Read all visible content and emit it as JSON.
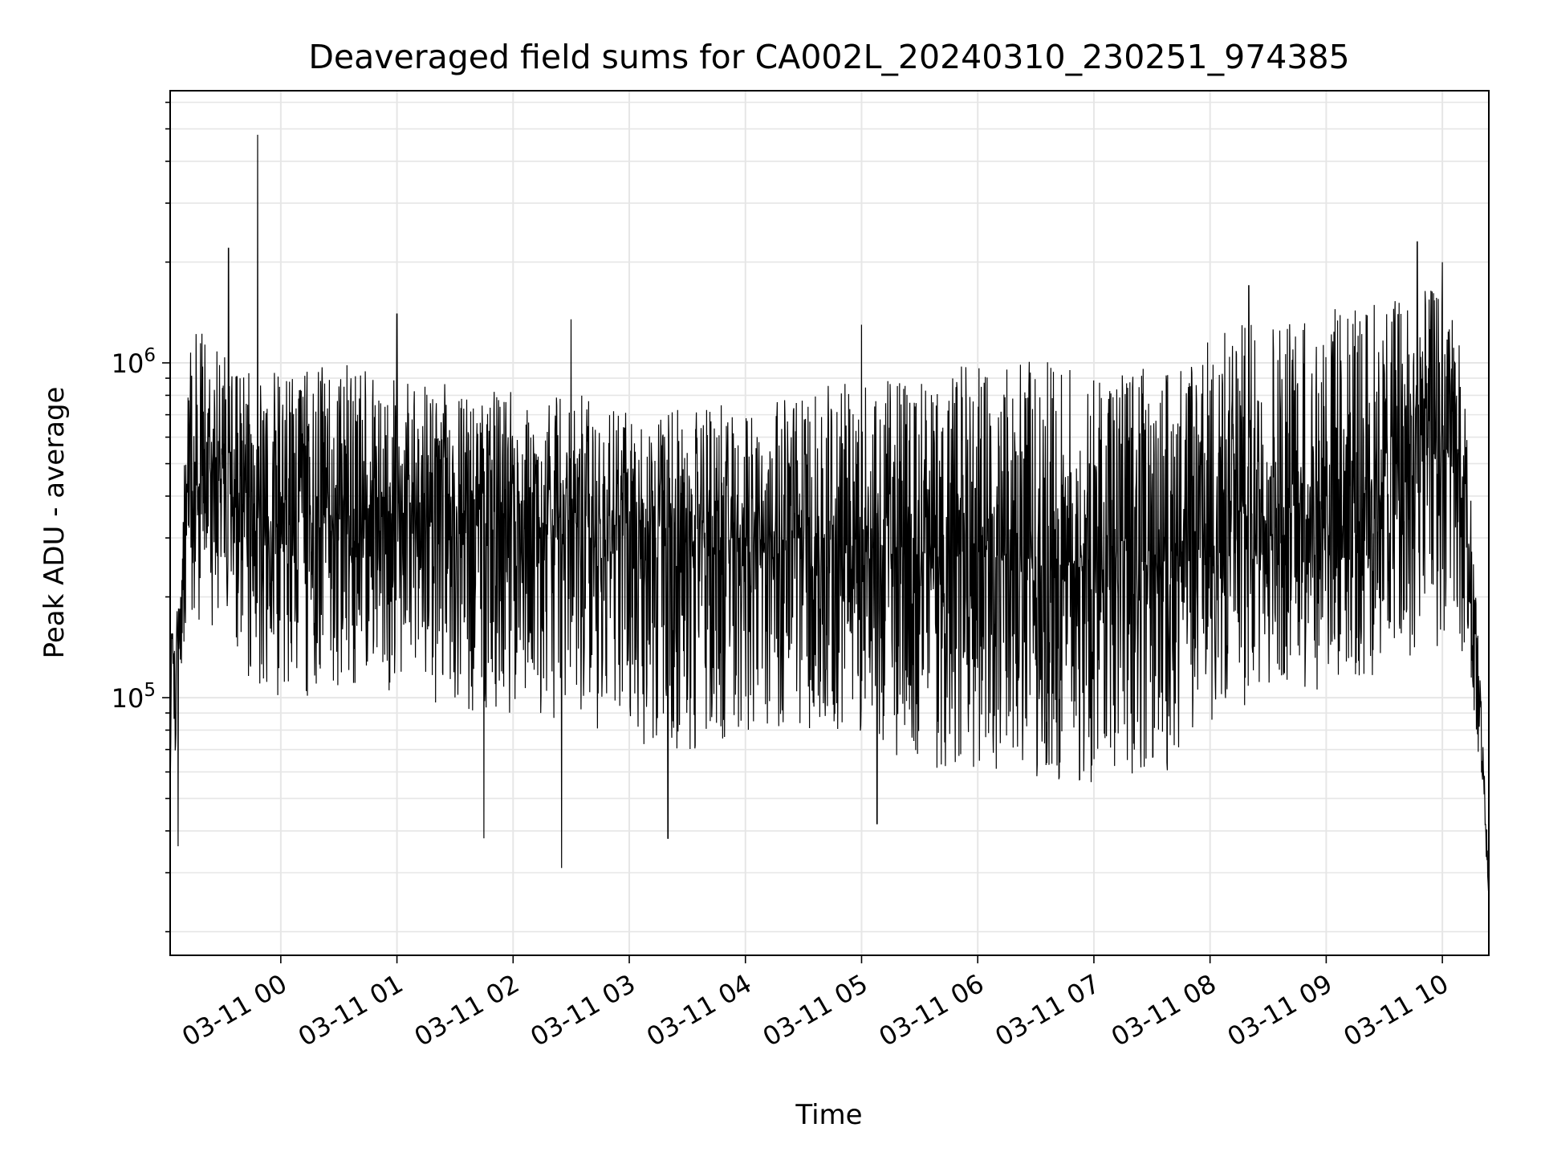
{
  "chart_data": {
    "type": "line",
    "title": "Deaveraged field sums for CA002L_20240310_230251_974385",
    "xlabel": "Time",
    "ylabel": "Peak ADU - average",
    "yscale": "log",
    "ylim": [
      17000,
      6500000
    ],
    "xlim": [
      "2024-03-10 23:02:51",
      "2024-03-11 10:24:00"
    ],
    "grid": true,
    "grid_color": "#e6e6e6",
    "line_color": "#000000",
    "x_ticks": [
      "03-11 00",
      "03-11 01",
      "03-11 02",
      "03-11 03",
      "03-11 04",
      "03-11 05",
      "03-11 06",
      "03-11 07",
      "03-11 08",
      "03-11 09",
      "03-11 10"
    ],
    "y_ticks": [
      {
        "base": "10",
        "exp": "5",
        "value": 100000
      },
      {
        "base": "10",
        "exp": "6",
        "value": 1000000
      }
    ],
    "series": [
      {
        "x": [
          "2024-03-10 23:03",
          "2024-03-10 23:08",
          "2024-03-10 23:12",
          "2024-03-10 23:20",
          "2024-03-10 23:35",
          "2024-03-10 23:48",
          "2024-03-11 00:10",
          "2024-03-11 00:40",
          "2024-03-11 01:10",
          "2024-03-11 01:40",
          "2024-03-11 02:10",
          "2024-03-11 02:40",
          "2024-03-11 03:10",
          "2024-03-11 03:40",
          "2024-03-11 04:10",
          "2024-03-11 04:40",
          "2024-03-11 05:10",
          "2024-03-11 05:40",
          "2024-03-11 06:10",
          "2024-03-11 06:40",
          "2024-03-11 07:10",
          "2024-03-11 07:40",
          "2024-03-11 08:10",
          "2024-03-11 08:40",
          "2024-03-11 09:10",
          "2024-03-11 09:40",
          "2024-03-11 10:05",
          "2024-03-11 10:12",
          "2024-03-11 10:20",
          "2024-03-11 10:24"
        ],
        "median": [
          120000,
          150000,
          500000,
          480000,
          430000,
          350000,
          340000,
          370000,
          360000,
          340000,
          330000,
          320000,
          300000,
          290000,
          300000,
          300000,
          270000,
          260000,
          270000,
          250000,
          240000,
          260000,
          330000,
          380000,
          420000,
          480000,
          560000,
          350000,
          85000,
          25000
        ],
        "low": [
          60000,
          80000,
          160000,
          170000,
          150000,
          100000,
          100000,
          110000,
          100000,
          90000,
          90000,
          80000,
          70000,
          70000,
          80000,
          80000,
          70000,
          60000,
          60000,
          55000,
          55000,
          60000,
          90000,
          100000,
          110000,
          120000,
          150000,
          120000,
          60000,
          25000
        ],
        "high": [
          150000,
          200000,
          1500000,
          1200000,
          1000000,
          900000,
          1000000,
          1000000,
          900000,
          850000,
          800000,
          800000,
          700000,
          750000,
          750000,
          850000,
          900000,
          1000000,
          1100000,
          1000000,
          950000,
          1000000,
          1300000,
          1400000,
          1500000,
          1600000,
          1700000,
          800000,
          100000,
          30000
        ],
        "spikes": [
          {
            "x": "2024-03-10 23:48",
            "y": 4800000
          },
          {
            "x": "2024-03-10 23:33",
            "y": 2200000
          },
          {
            "x": "2024-03-11 09:47",
            "y": 2300000
          },
          {
            "x": "2024-03-11 10:00",
            "y": 2000000
          },
          {
            "x": "2024-03-11 08:20",
            "y": 1700000
          },
          {
            "x": "2024-03-11 01:00",
            "y": 1400000
          },
          {
            "x": "2024-03-11 02:30",
            "y": 1350000
          },
          {
            "x": "2024-03-11 05:00",
            "y": 1300000
          },
          {
            "x": "2024-03-11 02:25",
            "y": 31000
          },
          {
            "x": "2024-03-10 23:07",
            "y": 36000
          },
          {
            "x": "2024-03-11 03:20",
            "y": 38000
          },
          {
            "x": "2024-03-11 01:45",
            "y": 38000
          },
          {
            "x": "2024-03-11 05:08",
            "y": 42000
          }
        ]
      }
    ]
  }
}
